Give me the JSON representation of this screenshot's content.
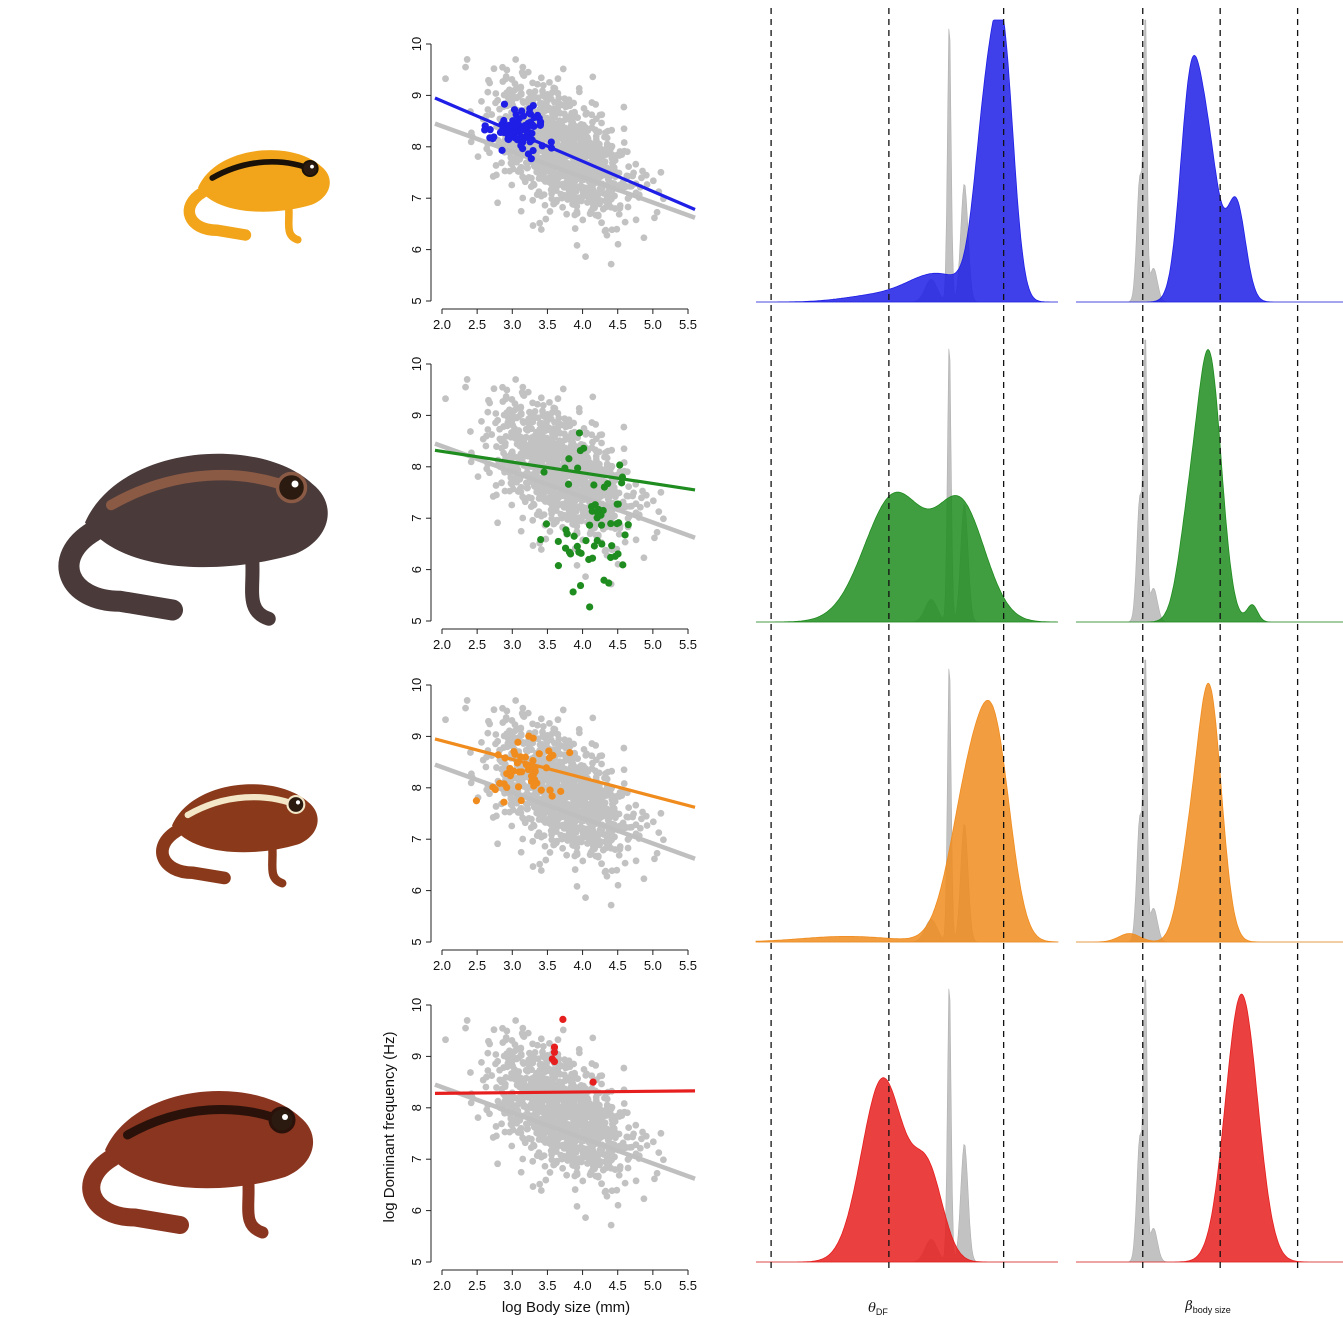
{
  "colors": {
    "grey": "#c2c2c2",
    "grey_line": "#bfbfbf",
    "axis": "#222222"
  },
  "frogs": [
    {
      "icon": "frog-illustration-yellow-black",
      "body": "#f2a51a",
      "stripe": "#1a1208"
    },
    {
      "icon": "frog-illustration-dark-brown",
      "body": "#4a3a3a",
      "stripe": "#8a5a45"
    },
    {
      "icon": "frog-illustration-brown-cream",
      "body": "#8a3a1a",
      "stripe": "#f3e7c8"
    },
    {
      "icon": "frog-illustration-red-brown",
      "body": "#8a3520",
      "stripe": "#2a120a"
    }
  ],
  "scatter_axes": {
    "x_ticks": [
      "2.0",
      "2.5",
      "3.0",
      "3.5",
      "4.0",
      "4.5",
      "5.0",
      "5.5"
    ],
    "y_ticks": [
      "5",
      "6",
      "7",
      "8",
      "9",
      "10"
    ],
    "xlabel": "log Body size (mm)",
    "ylabel": "log Dominant frequency (Hz)"
  },
  "density_labels": {
    "theta": {
      "symbol": "θ",
      "sub": "DF"
    },
    "beta": {
      "symbol": "β",
      "sub": "body size"
    }
  },
  "chart_data": [
    {
      "type": "scatter",
      "panel": 1,
      "color": "#1e1ee6",
      "xlim": [
        2.0,
        5.5
      ],
      "ylim": [
        5,
        10
      ],
      "background": {
        "color": "#c2c2c2",
        "fit": {
          "x": [
            1.9,
            5.6
          ],
          "y": [
            8.45,
            6.62
          ]
        },
        "n": 1100
      },
      "fit": {
        "x": [
          1.9,
          5.6
        ],
        "y": [
          8.95,
          6.78
        ]
      },
      "points": {
        "x_mean": 3.1,
        "x_sd": 0.22,
        "y_mean": 8.35,
        "y_sd": 0.2,
        "n": 80
      }
    },
    {
      "type": "scatter",
      "panel": 2,
      "color": "#1f8c1f",
      "xlim": [
        2.0,
        5.5
      ],
      "ylim": [
        5,
        10
      ],
      "background": {
        "color": "#c2c2c2",
        "fit": {
          "x": [
            1.9,
            5.6
          ],
          "y": [
            8.45,
            6.62
          ]
        },
        "n": 1100
      },
      "fit": {
        "x": [
          1.9,
          5.6
        ],
        "y": [
          8.32,
          7.55
        ]
      },
      "points": {
        "x_mean": 4.1,
        "x_sd": 0.3,
        "y_mean": 7.0,
        "y_sd": 0.7,
        "n": 60
      }
    },
    {
      "type": "scatter",
      "panel": 3,
      "color": "#f08c1e",
      "xlim": [
        2.0,
        5.5
      ],
      "ylim": [
        5,
        10
      ],
      "background": {
        "color": "#c2c2c2",
        "fit": {
          "x": [
            1.9,
            5.6
          ],
          "y": [
            8.45,
            6.62
          ]
        },
        "n": 1100
      },
      "fit": {
        "x": [
          1.9,
          5.6
        ],
        "y": [
          8.95,
          7.62
        ]
      },
      "points": {
        "x_mean": 3.15,
        "x_sd": 0.25,
        "y_mean": 8.35,
        "y_sd": 0.3,
        "n": 50
      }
    },
    {
      "type": "scatter",
      "panel": 4,
      "color": "#e61e1e",
      "xlim": [
        2.0,
        5.5
      ],
      "ylim": [
        5,
        10
      ],
      "background": {
        "color": "#c2c2c2",
        "fit": {
          "x": [
            1.9,
            5.6
          ],
          "y": [
            8.45,
            6.62
          ]
        },
        "n": 1100
      },
      "fit": {
        "x": [
          1.9,
          5.6
        ],
        "y": [
          8.28,
          8.33
        ]
      },
      "points_list": [
        [
          3.72,
          9.72
        ],
        [
          3.6,
          9.18
        ],
        [
          3.6,
          9.08
        ],
        [
          3.57,
          8.95
        ],
        [
          3.6,
          8.9
        ],
        [
          4.15,
          8.5
        ]
      ]
    },
    {
      "type": "area",
      "kind": "posterior-density",
      "label": "theta_DF",
      "dashed_x": [
        0.05,
        0.44,
        0.82
      ],
      "grey": {
        "peaks": [
          [
            0.64,
            0.006,
            1.0
          ],
          [
            0.69,
            0.012,
            0.42
          ],
          [
            0.58,
            0.02,
            0.08
          ]
        ]
      },
      "series": [
        {
          "color": "#1e1ee6",
          "peaks": [
            [
              0.76,
              0.038,
              0.6
            ],
            [
              0.82,
              0.035,
              0.82
            ],
            [
              0.6,
              0.1,
              0.1
            ],
            [
              0.38,
              0.1,
              0.02
            ]
          ]
        },
        {
          "color": "#1f8c1f",
          "peaks": [
            [
              0.46,
              0.1,
              0.45
            ],
            [
              0.68,
              0.08,
              0.4
            ]
          ]
        },
        {
          "color": "#f08c1e",
          "peaks": [
            [
              0.72,
              0.07,
              0.62
            ],
            [
              0.8,
              0.05,
              0.45
            ],
            [
              0.3,
              0.15,
              0.02
            ]
          ]
        },
        {
          "color": "#e61e1e",
          "peaks": [
            [
              0.42,
              0.07,
              0.65
            ],
            [
              0.57,
              0.05,
              0.3
            ]
          ]
        }
      ]
    },
    {
      "type": "area",
      "kind": "posterior-density",
      "label": "beta_body_size",
      "dashed_x": [
        0.25,
        0.54,
        0.83
      ],
      "grey": {
        "peaks": [
          [
            0.26,
            0.006,
            1.0
          ],
          [
            0.24,
            0.012,
            0.45
          ],
          [
            0.29,
            0.015,
            0.12
          ]
        ]
      },
      "series": [
        {
          "color": "#1e1ee6",
          "peaks": [
            [
              0.43,
              0.04,
              0.75
            ],
            [
              0.5,
              0.04,
              0.45
            ],
            [
              0.6,
              0.035,
              0.35
            ]
          ]
        },
        {
          "color": "#1f8c1f",
          "peaks": [
            [
              0.5,
              0.045,
              0.92
            ],
            [
              0.42,
              0.04,
              0.3
            ],
            [
              0.66,
              0.02,
              0.06
            ]
          ]
        },
        {
          "color": "#f08c1e",
          "peaks": [
            [
              0.5,
              0.045,
              0.88
            ],
            [
              0.42,
              0.04,
              0.25
            ],
            [
              0.2,
              0.04,
              0.03
            ]
          ]
        },
        {
          "color": "#e61e1e",
          "peaks": [
            [
              0.62,
              0.06,
              0.95
            ]
          ]
        }
      ]
    }
  ]
}
